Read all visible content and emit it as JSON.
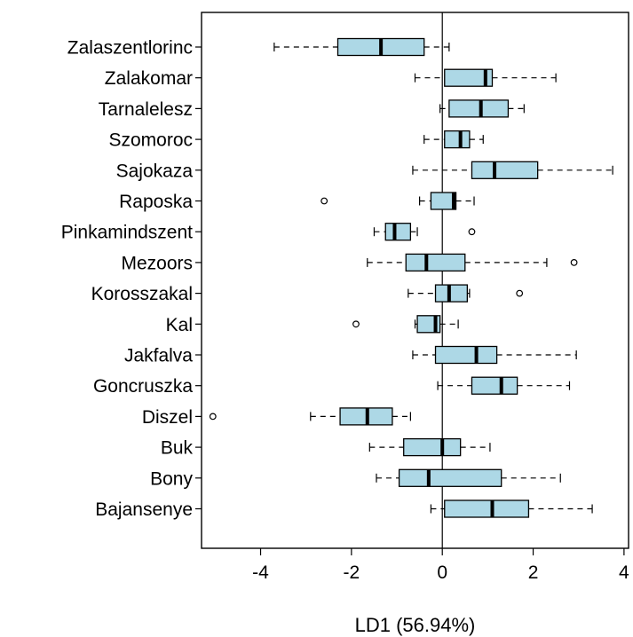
{
  "chart_data": {
    "type": "boxplot",
    "orientation": "horizontal",
    "xlabel": "LD1 (56.94%)",
    "ylabel": "",
    "xlim": [
      -5.3,
      4.1
    ],
    "xticks": [
      -4,
      -2,
      0,
      2,
      4
    ],
    "reference_line": 0,
    "box_color": "#add8e6",
    "grid": false,
    "categories": [
      "Zalaszentlorinc",
      "Zalakomar",
      "Tarnalelesz",
      "Szomoroc",
      "Sajokaza",
      "Raposka",
      "Pinkamindszent",
      "Mezoors",
      "Korosszakal",
      "Kal",
      "Jakfalva",
      "Goncruszka",
      "Diszel",
      "Buk",
      "Bony",
      "Bajansenye"
    ],
    "boxes": [
      {
        "label": "Zalaszentlorinc",
        "whisker_low": -3.7,
        "q1": -2.3,
        "median": -1.35,
        "q3": -0.4,
        "whisker_high": 0.15,
        "outliers": []
      },
      {
        "label": "Zalakomar",
        "whisker_low": -0.6,
        "q1": 0.05,
        "median": 0.95,
        "q3": 1.1,
        "whisker_high": 2.5,
        "outliers": []
      },
      {
        "label": "Tarnalelesz",
        "whisker_low": -0.05,
        "q1": 0.15,
        "median": 0.85,
        "q3": 1.45,
        "whisker_high": 1.8,
        "outliers": []
      },
      {
        "label": "Szomoroc",
        "whisker_low": -0.4,
        "q1": 0.05,
        "median": 0.4,
        "q3": 0.6,
        "whisker_high": 0.9,
        "outliers": []
      },
      {
        "label": "Sajokaza",
        "whisker_low": -0.65,
        "q1": 0.65,
        "median": 1.15,
        "q3": 2.1,
        "whisker_high": 3.75,
        "outliers": []
      },
      {
        "label": "Raposka",
        "whisker_low": -0.5,
        "q1": -0.25,
        "median": 0.25,
        "q3": 0.3,
        "whisker_high": 0.7,
        "outliers": [
          -2.6
        ]
      },
      {
        "label": "Pinkamindszent",
        "whisker_low": -1.5,
        "q1": -1.25,
        "median": -1.05,
        "q3": -0.7,
        "whisker_high": -0.55,
        "outliers": [
          0.65
        ]
      },
      {
        "label": "Mezoors",
        "whisker_low": -1.65,
        "q1": -0.8,
        "median": -0.35,
        "q3": 0.5,
        "whisker_high": 2.3,
        "outliers": [
          2.9
        ]
      },
      {
        "label": "Korosszakal",
        "whisker_low": -0.75,
        "q1": -0.15,
        "median": 0.15,
        "q3": 0.55,
        "whisker_high": 0.6,
        "outliers": [
          1.7
        ]
      },
      {
        "label": "Kal",
        "whisker_low": -0.6,
        "q1": -0.55,
        "median": -0.15,
        "q3": -0.05,
        "whisker_high": 0.35,
        "outliers": [
          -1.9
        ]
      },
      {
        "label": "Jakfalva",
        "whisker_low": -0.65,
        "q1": -0.15,
        "median": 0.75,
        "q3": 1.2,
        "whisker_high": 2.95,
        "outliers": []
      },
      {
        "label": "Goncruszka",
        "whisker_low": -0.1,
        "q1": 0.65,
        "median": 1.3,
        "q3": 1.65,
        "whisker_high": 2.8,
        "outliers": []
      },
      {
        "label": "Diszel",
        "whisker_low": -2.9,
        "q1": -2.25,
        "median": -1.65,
        "q3": -1.1,
        "whisker_high": -0.7,
        "outliers": [
          -5.05
        ]
      },
      {
        "label": "Buk",
        "whisker_low": -1.6,
        "q1": -0.85,
        "median": 0.0,
        "q3": 0.4,
        "whisker_high": 1.05,
        "outliers": []
      },
      {
        "label": "Bony",
        "whisker_low": -1.45,
        "q1": -0.95,
        "median": -0.3,
        "q3": 1.3,
        "whisker_high": 2.6,
        "outliers": []
      },
      {
        "label": "Bajansenye",
        "whisker_low": -0.25,
        "q1": 0.05,
        "median": 1.1,
        "q3": 1.9,
        "whisker_high": 3.3,
        "outliers": []
      }
    ]
  }
}
